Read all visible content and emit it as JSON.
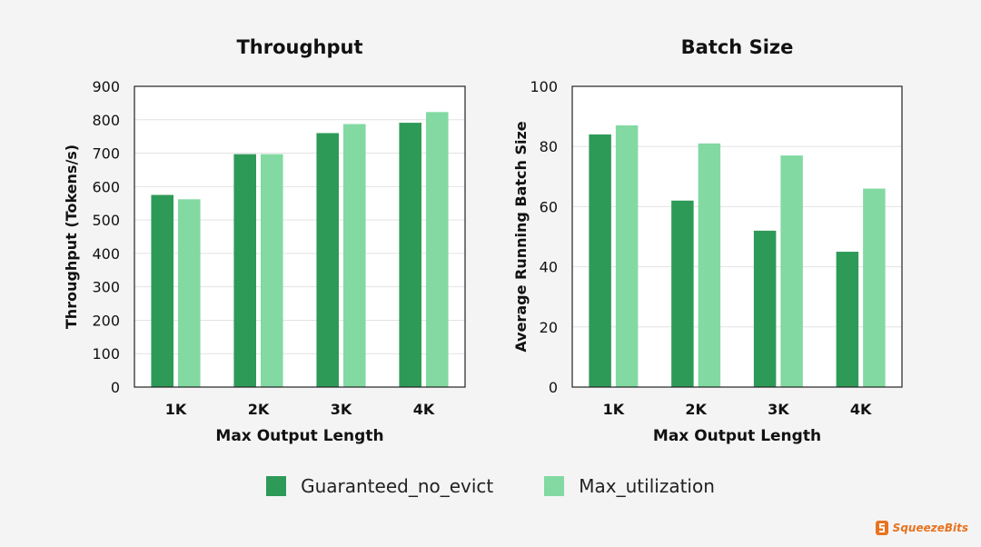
{
  "colors": {
    "guaranteed": "#2e9a58",
    "max_util": "#82d9a2",
    "grid": "#e3e3e3",
    "axis": "#222222",
    "brand": "#e8731f"
  },
  "brand": {
    "name": "SqueezeBits",
    "icon": "squeezebits-logo-icon"
  },
  "legend": [
    {
      "label": "Guaranteed_no_evict",
      "color_key": "guaranteed"
    },
    {
      "label": "Max_utilization",
      "color_key": "max_util"
    }
  ],
  "chart_data": [
    {
      "type": "bar",
      "title": "Throughput",
      "xlabel": "Max Output Length",
      "ylabel": "Throughput (Tokens/s)",
      "categories": [
        "1K",
        "2K",
        "3K",
        "4K"
      ],
      "ylim": [
        0,
        900
      ],
      "yticks": [
        0,
        100,
        200,
        300,
        400,
        500,
        600,
        700,
        800,
        900
      ],
      "grid": true,
      "series": [
        {
          "name": "Guaranteed_no_evict",
          "values": [
            575,
            697,
            760,
            791
          ]
        },
        {
          "name": "Max_utilization",
          "values": [
            562,
            697,
            787,
            823
          ]
        }
      ]
    },
    {
      "type": "bar",
      "title": "Batch Size",
      "xlabel": "Max Output Length",
      "ylabel": "Average Running Batch Size",
      "categories": [
        "1K",
        "2K",
        "3K",
        "4K"
      ],
      "ylim": [
        0,
        100
      ],
      "yticks": [
        0,
        20,
        40,
        60,
        80,
        100
      ],
      "grid": true,
      "series": [
        {
          "name": "Guaranteed_no_evict",
          "values": [
            84,
            62,
            52,
            45
          ]
        },
        {
          "name": "Max_utilization",
          "values": [
            87,
            81,
            77,
            66
          ]
        }
      ]
    }
  ]
}
